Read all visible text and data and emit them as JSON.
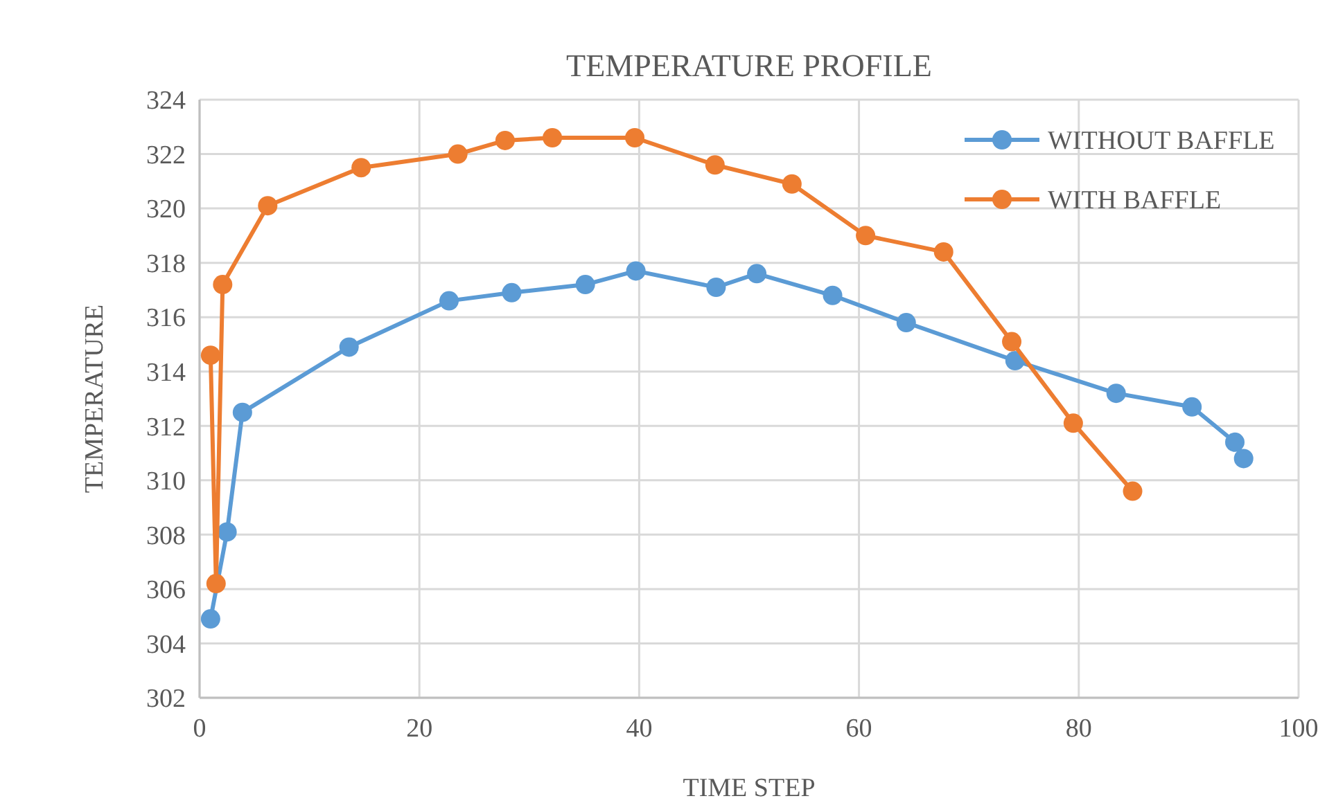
{
  "chart_data": {
    "type": "line",
    "title": "TEMPERATURE PROFILE",
    "xlabel": "TIME STEP",
    "ylabel": "TEMPERATURE",
    "xlim": [
      0,
      100
    ],
    "xticks": [
      0,
      20,
      40,
      60,
      80,
      100
    ],
    "ylim": [
      302,
      324
    ],
    "yticks": [
      302,
      304,
      306,
      308,
      310,
      312,
      314,
      316,
      318,
      320,
      322,
      324
    ],
    "grid": true,
    "legend": "top right",
    "marker": "circle",
    "line_style": "solid",
    "series": [
      {
        "name": "WITHOUT BAFFLE",
        "color": "#5b9bd5",
        "x": [
          1.0,
          2.5,
          3.9,
          13.6,
          22.7,
          28.4,
          35.1,
          39.7,
          47.0,
          50.7,
          57.6,
          64.3,
          74.2,
          83.4,
          90.3,
          94.2,
          95.0
        ],
        "values": [
          304.9,
          308.1,
          312.5,
          314.9,
          316.6,
          316.9,
          317.2,
          317.7,
          317.1,
          317.6,
          316.8,
          315.8,
          314.4,
          313.2,
          312.7,
          311.4,
          310.8
        ]
      },
      {
        "name": "WITH BAFFLE",
        "color": "#ed7d31",
        "x": [
          1.0,
          1.5,
          2.1,
          6.2,
          14.7,
          23.5,
          27.8,
          32.1,
          39.6,
          46.9,
          53.9,
          60.6,
          67.7,
          73.9,
          79.5,
          84.9
        ],
        "values": [
          314.6,
          306.2,
          317.2,
          320.1,
          321.5,
          322.0,
          322.5,
          322.6,
          322.6,
          321.6,
          320.9,
          319.0,
          318.4,
          315.1,
          312.1,
          309.6
        ]
      }
    ]
  }
}
